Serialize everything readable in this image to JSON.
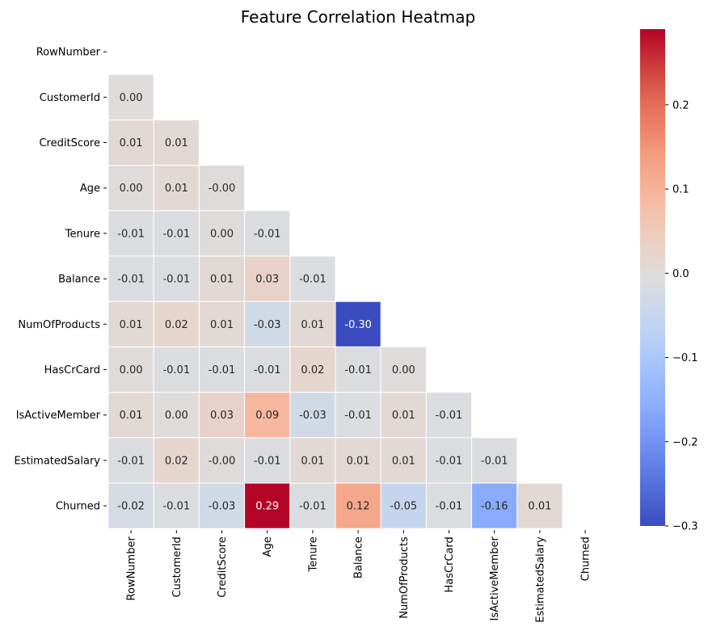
{
  "chart_data": {
    "type": "heatmap",
    "title": "Feature Correlation Heatmap",
    "colormap": "coolwarm",
    "mask": "upper-triangle",
    "labels": [
      "RowNumber",
      "CustomerId",
      "CreditScore",
      "Age",
      "Tenure",
      "Balance",
      "NumOfProducts",
      "HasCrCard",
      "IsActiveMember",
      "EstimatedSalary",
      "Churned"
    ],
    "lower_triangle": [
      [],
      [
        "0.00"
      ],
      [
        "0.01",
        "0.01"
      ],
      [
        "0.00",
        "0.01",
        "-0.00"
      ],
      [
        "-0.01",
        "-0.01",
        "0.00",
        "-0.01"
      ],
      [
        "-0.01",
        "-0.01",
        "0.01",
        "0.03",
        "-0.01"
      ],
      [
        "0.01",
        "0.02",
        "0.01",
        "-0.03",
        "0.01",
        "-0.30"
      ],
      [
        "0.00",
        "-0.01",
        "-0.01",
        "-0.01",
        "0.02",
        "-0.01",
        "0.00"
      ],
      [
        "0.01",
        "0.00",
        "0.03",
        "0.09",
        "-0.03",
        "-0.01",
        "0.01",
        "-0.01"
      ],
      [
        "-0.01",
        "0.02",
        "-0.00",
        "-0.01",
        "0.01",
        "0.01",
        "0.01",
        "-0.01",
        "-0.01"
      ],
      [
        "-0.02",
        "-0.01",
        "-0.03",
        "0.29",
        "-0.01",
        "0.12",
        "-0.05",
        "-0.01",
        "-0.16",
        "0.01"
      ]
    ],
    "colorbar": {
      "vmin": -0.3,
      "vmax": 0.29,
      "ticks": [
        0.2,
        0.1,
        0.0,
        -0.1,
        -0.2,
        -0.3
      ],
      "tick_labels": [
        "0.2",
        "0.1",
        "0.0",
        "−0.1",
        "−0.2",
        "−0.3"
      ]
    }
  }
}
